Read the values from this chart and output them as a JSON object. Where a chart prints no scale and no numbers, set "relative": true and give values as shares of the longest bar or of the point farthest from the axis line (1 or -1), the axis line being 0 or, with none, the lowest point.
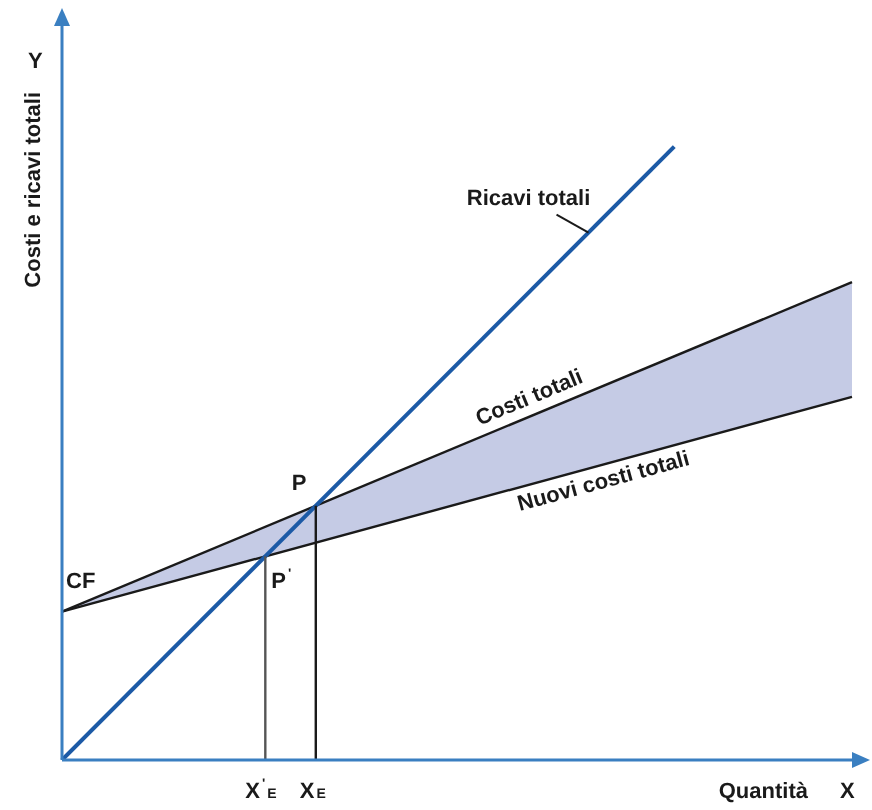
{
  "chart_data": {
    "type": "line",
    "relative": true,
    "xlabel": "Quantità",
    "ylabel": "Costi e ricavi totali",
    "legend": false,
    "marker": "none",
    "line_style": "solid",
    "annotations": [
      "Y",
      "X",
      "P",
      "P$^{'}$",
      "CF",
      "X$^{'}$$_{E}$",
      "X$_{E}$"
    ],
    "categories": [
      null,
      null,
      null,
      null,
      null,
      null,
      null,
      null,
      null,
      null,
      null,
      null,
      null,
      null,
      null,
      null,
      null,
      null,
      null,
      null,
      null,
      null,
      null,
      null,
      null,
      null,
      null,
      null,
      null,
      null,
      null,
      null,
      null,
      null,
      null,
      null,
      null,
      null,
      null,
      null,
      null
    ],
    "series": [
      {
        "name": "Ricavi totali",
        "color": "#1c5aa6",
        "values": [
          0,
          null,
          null,
          null,
          null,
          null,
          null,
          null,
          null,
          null,
          null,
          null,
          null,
          null,
          null,
          null,
          null,
          null,
          null,
          null,
          null,
          null,
          null,
          null,
          null,
          null,
          null,
          null,
          null,
          null,
          null,
          1,
          null,
          null,
          null,
          null,
          null,
          null,
          null,
          null,
          null
        ]
      },
      {
        "name": "Costi totali",
        "color": "#1a1a1a",
        "values": [
          0.242,
          null,
          null,
          null,
          null,
          null,
          null,
          null,
          null,
          null,
          null,
          null,
          null,
          null,
          null,
          null,
          null,
          null,
          null,
          null,
          null,
          null,
          null,
          null,
          null,
          null,
          null,
          null,
          null,
          null,
          null,
          null,
          null,
          null,
          null,
          null,
          null,
          null,
          null,
          null,
          0.779
        ]
      },
      {
        "name": "Nuovi costi totali",
        "color": "#1a1a1a",
        "values": [
          0.242,
          null,
          null,
          null,
          null,
          null,
          null,
          null,
          null,
          null,
          null,
          null,
          null,
          null,
          null,
          null,
          null,
          null,
          null,
          null,
          null,
          null,
          null,
          null,
          null,
          null,
          null,
          null,
          null,
          null,
          null,
          null,
          null,
          null,
          null,
          null,
          null,
          null,
          null,
          null,
          0.592
        ]
      }
    ]
  }
}
